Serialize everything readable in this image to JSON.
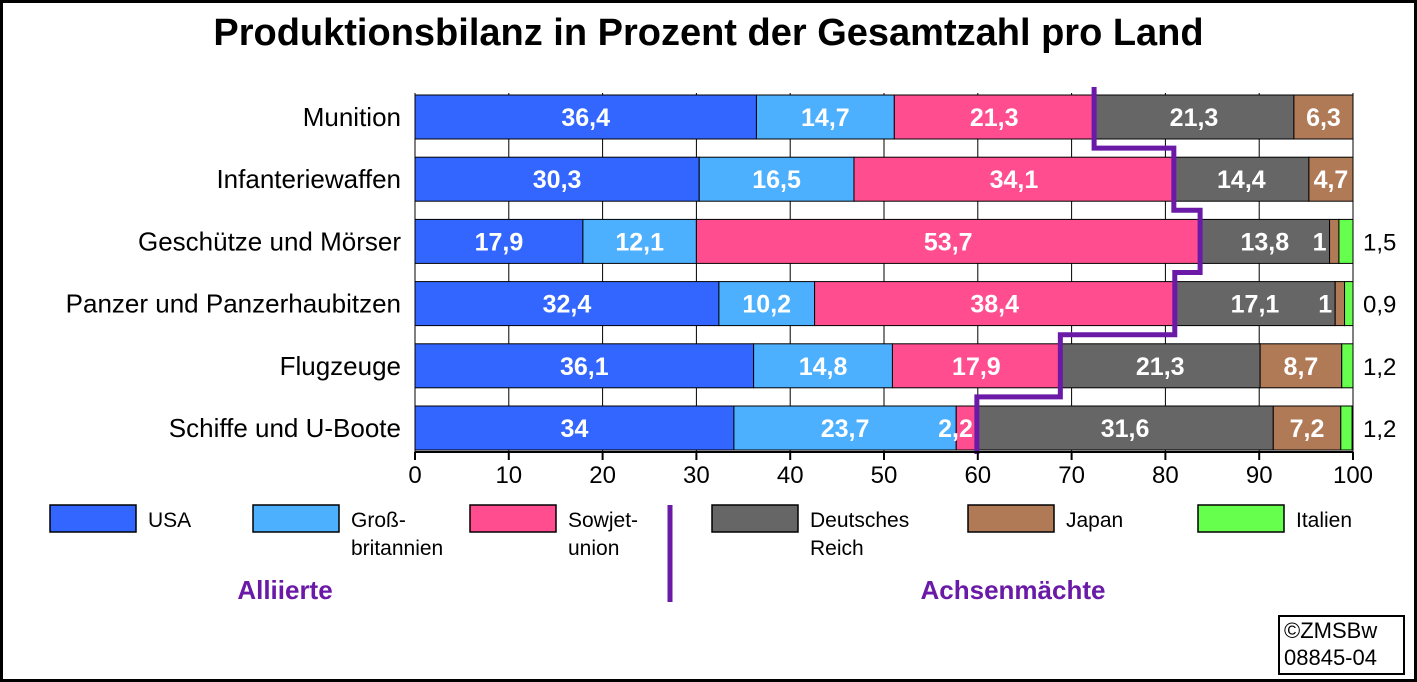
{
  "chart_data": {
    "type": "bar",
    "orientation": "horizontal-stacked",
    "title": "Produktionsbilanz in Prozent der Gesamtzahl pro Land",
    "categories": [
      "Munition",
      "Infanteriewaffen",
      "Geschütze und Mörser",
      "Panzer und Panzerhaubitzen",
      "Flugzeuge",
      "Schiffe und U-Boote"
    ],
    "series": [
      {
        "name": "USA",
        "color": "#3366ff",
        "values": [
          36.4,
          30.3,
          17.9,
          32.4,
          36.1,
          34
        ],
        "labels": [
          "36,4",
          "30,3",
          "17,9",
          "32,4",
          "36,1",
          "34"
        ]
      },
      {
        "name": "Großbritannien",
        "legend_lines": [
          "Groß-",
          "britannien"
        ],
        "color": "#4db0ff",
        "values": [
          14.7,
          16.5,
          12.1,
          10.2,
          14.8,
          23.7
        ],
        "labels": [
          "14,7",
          "16,5",
          "12,1",
          "10,2",
          "14,8",
          "23,7"
        ]
      },
      {
        "name": "Sowjetunion",
        "legend_lines": [
          "Sowjet-",
          "union"
        ],
        "color": "#ff4d8f",
        "values": [
          21.3,
          34.1,
          53.7,
          38.4,
          17.9,
          2.2
        ],
        "labels": [
          "21,3",
          "34,1",
          "53,7",
          "38,4",
          "17,9",
          "2,2"
        ]
      },
      {
        "name": "Deutsches Reich",
        "legend_lines": [
          "Deutsches",
          "Reich"
        ],
        "color": "#666666",
        "values": [
          21.3,
          14.4,
          13.8,
          17.1,
          21.3,
          31.6
        ],
        "labels": [
          "21,3",
          "14,4",
          "13,8",
          "17,1",
          "21,3",
          "31,6"
        ]
      },
      {
        "name": "Japan",
        "color": "#b07a57",
        "values": [
          6.3,
          4.7,
          1,
          1,
          8.7,
          7.2
        ],
        "labels": [
          "6,3",
          "4,7",
          "1",
          "1",
          "8,7",
          "7,2"
        ]
      },
      {
        "name": "Italien",
        "color": "#66ff4d",
        "values": [
          0,
          0,
          1.5,
          0.9,
          1.2,
          1.2
        ],
        "labels": [
          "",
          "",
          "1,5",
          "0,9",
          "1,2",
          "1,2"
        ]
      }
    ],
    "xlim": [
      0,
      100
    ],
    "xticks": [
      0,
      10,
      20,
      30,
      40,
      50,
      60,
      70,
      80,
      90,
      100
    ],
    "grid": true,
    "legend_position": "bottom",
    "groups": {
      "allies": "Alliierte",
      "axis": "Achsenmächte"
    },
    "divider_color": "#6a1aa6"
  },
  "copyright": {
    "line1": "©ZMSBw",
    "line2": "08845-04"
  }
}
